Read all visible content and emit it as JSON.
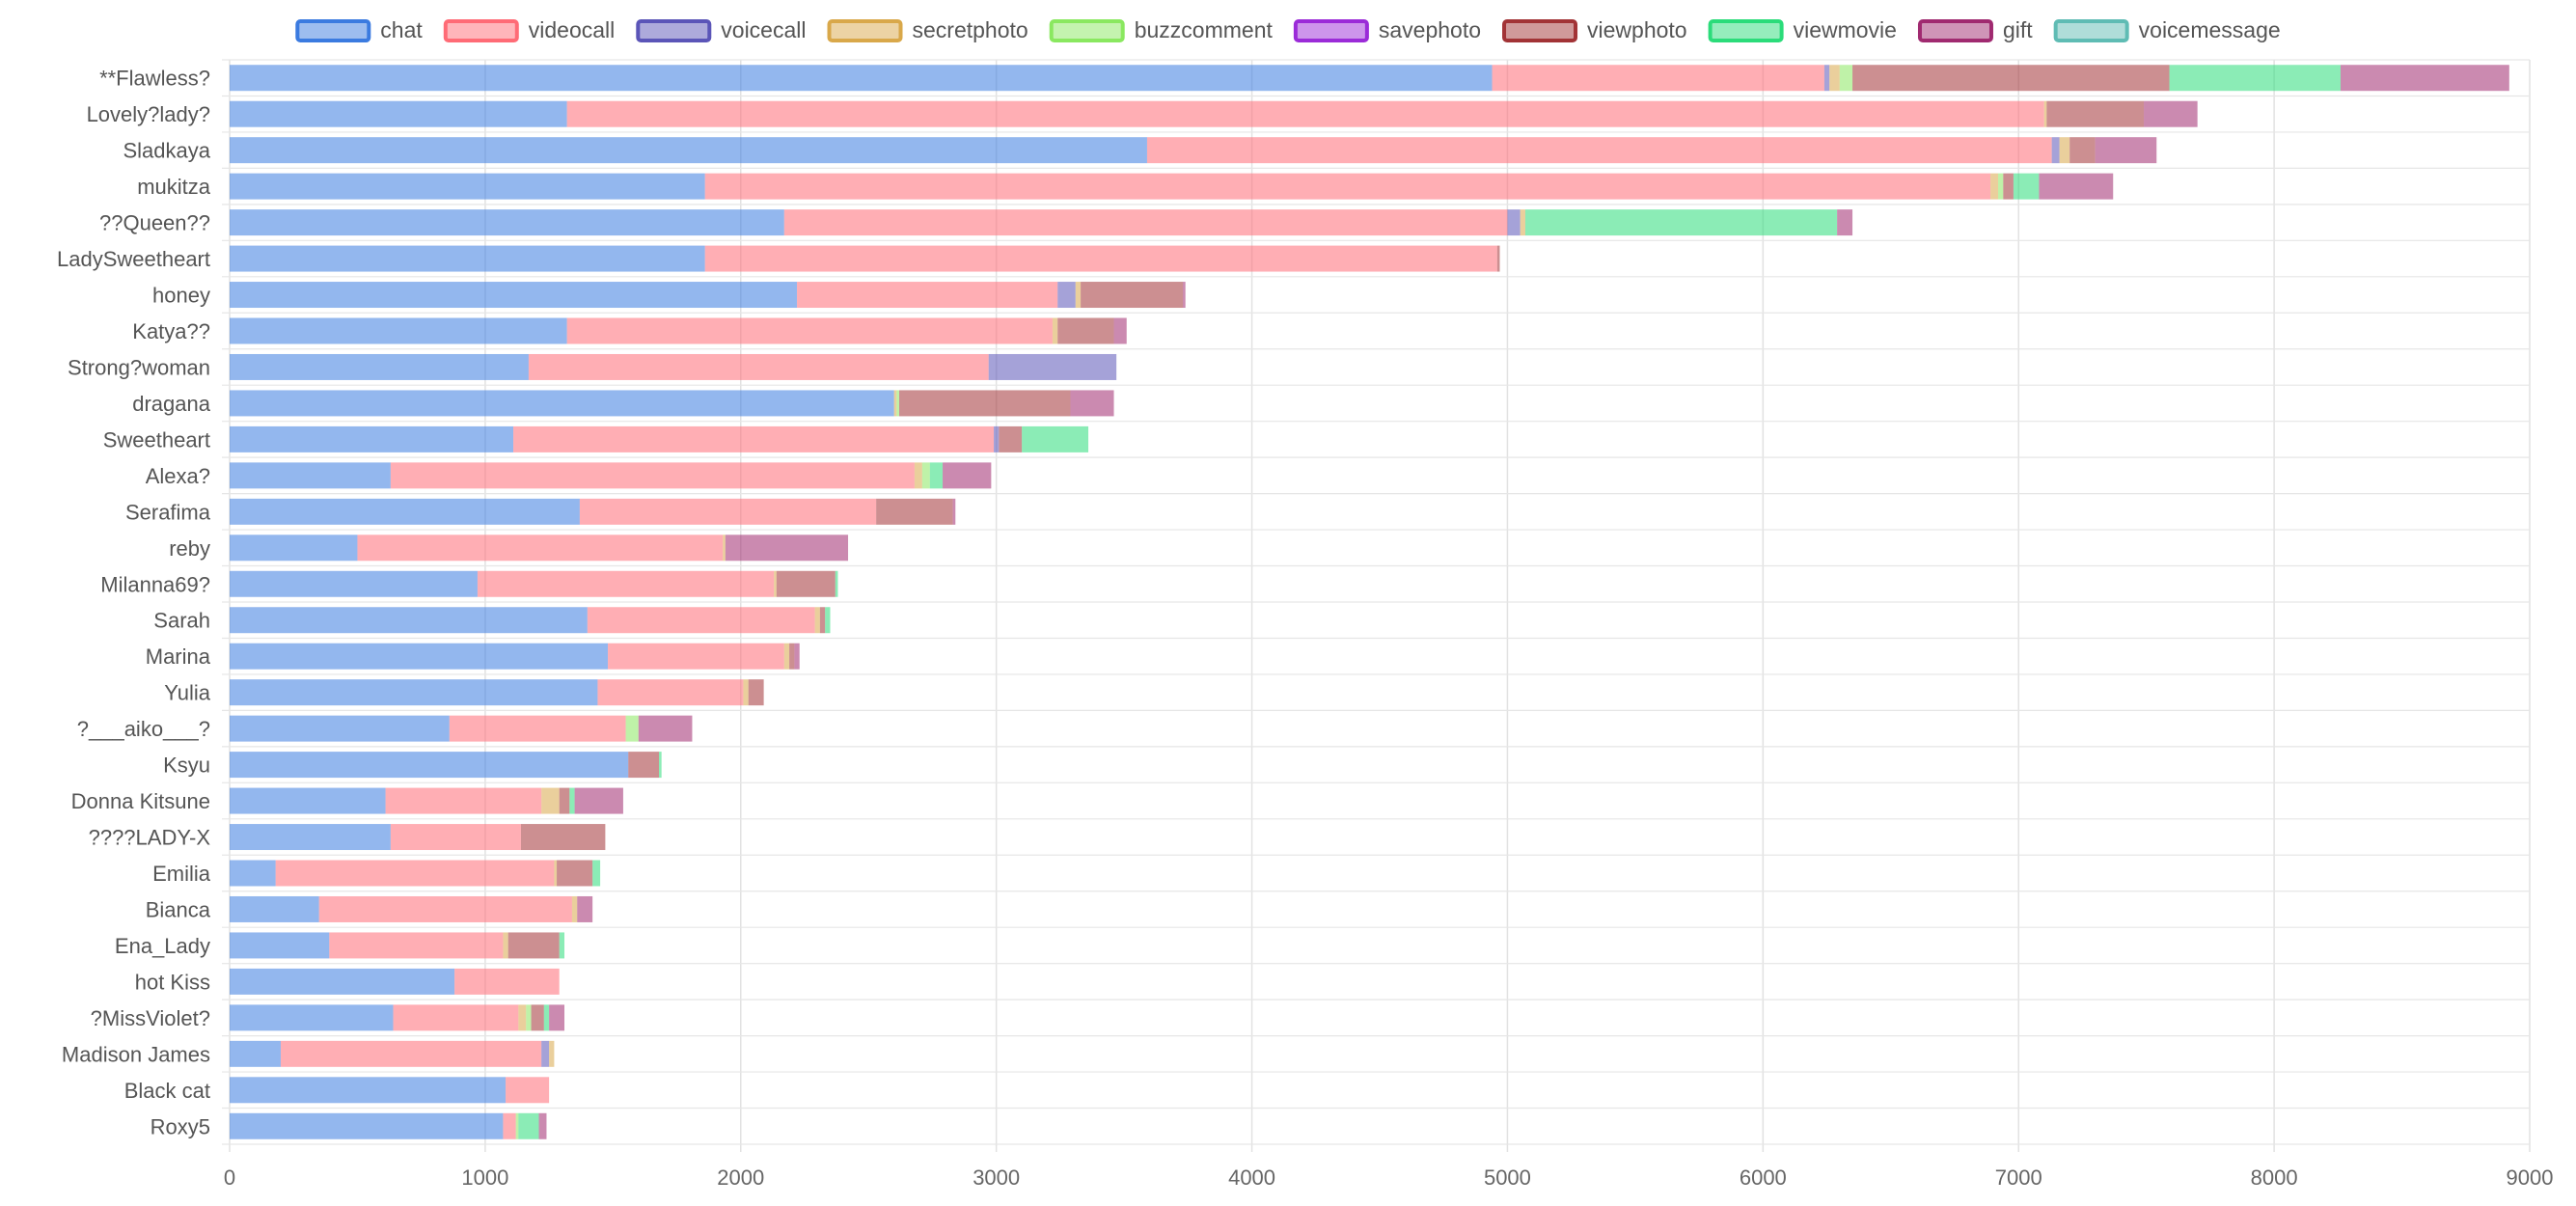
{
  "chart_data": {
    "type": "bar",
    "orientation": "horizontal",
    "stacked": true,
    "legend_position": "top",
    "grid": true,
    "xlim": [
      0,
      9000
    ],
    "x_ticks": [
      "0",
      "1000",
      "2000",
      "3000",
      "4000",
      "5000",
      "6000",
      "7000",
      "8000",
      "9000"
    ],
    "categories": [
      "**Flawless?",
      "Lovely?lady?",
      "Sladkaya",
      "mukitza",
      "??Queen??",
      "LadySweetheart",
      "honey",
      "Katya??",
      "Strong?woman",
      "dragana",
      "Sweetheart",
      "Alexa?",
      "Serafima",
      "reby",
      "Milanna69?",
      "Sarah",
      "Marina",
      "Yulia",
      "?___aiko___?",
      "Ksyu",
      "Donna Kitsune",
      "????LADY-X",
      "Emilia",
      "Bianca",
      "Ena_Lady",
      "hot Kiss",
      "?MissViolet?",
      "Madison James",
      "Black cat",
      "Roxy5"
    ],
    "series": [
      {
        "name": "chat",
        "color": "#3b7be0",
        "values": [
          4940,
          1320,
          3590,
          1860,
          2170,
          1860,
          2220,
          1320,
          1170,
          2600,
          1110,
          630,
          1370,
          500,
          970,
          1400,
          1480,
          1440,
          860,
          1560,
          610,
          630,
          180,
          350,
          390,
          880,
          640,
          200,
          1080,
          1070
        ]
      },
      {
        "name": "videocall",
        "color": "#ff6b76",
        "values": [
          1300,
          5780,
          3540,
          5030,
          2830,
          3100,
          1020,
          1900,
          1800,
          0,
          1880,
          2050,
          1160,
          1430,
          1160,
          890,
          690,
          570,
          690,
          0,
          610,
          510,
          1090,
          990,
          680,
          410,
          490,
          1020,
          170,
          50
        ]
      },
      {
        "name": "voicecall",
        "color": "#5b55b8",
        "values": [
          20,
          0,
          30,
          0,
          50,
          0,
          70,
          0,
          500,
          0,
          20,
          0,
          0,
          0,
          0,
          0,
          0,
          0,
          0,
          0,
          0,
          0,
          0,
          0,
          0,
          0,
          0,
          30,
          0,
          0
        ]
      },
      {
        "name": "secretphoto",
        "color": "#d9a84a",
        "values": [
          40,
          10,
          40,
          30,
          20,
          0,
          20,
          20,
          0,
          10,
          0,
          30,
          0,
          10,
          10,
          20,
          20,
          20,
          0,
          0,
          70,
          0,
          10,
          20,
          20,
          0,
          30,
          20,
          0,
          0
        ]
      },
      {
        "name": "buzzcomment",
        "color": "#8ae860",
        "values": [
          50,
          0,
          0,
          20,
          0,
          0,
          0,
          0,
          0,
          10,
          0,
          30,
          0,
          0,
          0,
          0,
          0,
          0,
          50,
          0,
          0,
          0,
          0,
          0,
          0,
          0,
          20,
          0,
          0,
          10
        ]
      },
      {
        "name": "savephoto",
        "color": "#9b2bd8",
        "values": [
          0,
          0,
          0,
          0,
          0,
          0,
          0,
          0,
          0,
          0,
          0,
          0,
          0,
          0,
          0,
          0,
          0,
          0,
          0,
          0,
          0,
          0,
          0,
          0,
          0,
          0,
          0,
          0,
          0,
          0
        ]
      },
      {
        "name": "viewphoto",
        "color": "#a23336",
        "values": [
          1240,
          380,
          100,
          40,
          0,
          10,
          400,
          220,
          0,
          670,
          90,
          0,
          300,
          0,
          230,
          20,
          20,
          60,
          0,
          120,
          40,
          330,
          140,
          0,
          200,
          0,
          50,
          0,
          0,
          0
        ]
      },
      {
        "name": "viewmovie",
        "color": "#2bdc7a",
        "values": [
          670,
          0,
          0,
          100,
          1220,
          0,
          0,
          0,
          0,
          0,
          260,
          50,
          0,
          0,
          10,
          20,
          0,
          0,
          0,
          10,
          20,
          0,
          30,
          0,
          20,
          0,
          20,
          0,
          0,
          80
        ]
      },
      {
        "name": "gift",
        "color": "#a02a70",
        "values": [
          660,
          210,
          240,
          290,
          60,
          0,
          10,
          50,
          0,
          170,
          0,
          190,
          10,
          480,
          0,
          0,
          20,
          0,
          210,
          0,
          190,
          0,
          0,
          60,
          0,
          0,
          60,
          0,
          0,
          30
        ]
      },
      {
        "name": "voicemessage",
        "color": "#5fbcb4",
        "values": [
          0,
          0,
          0,
          0,
          0,
          0,
          0,
          0,
          0,
          0,
          0,
          0,
          0,
          0,
          0,
          0,
          0,
          0,
          0,
          0,
          0,
          0,
          0,
          0,
          0,
          0,
          0,
          0,
          0,
          0
        ]
      }
    ]
  }
}
